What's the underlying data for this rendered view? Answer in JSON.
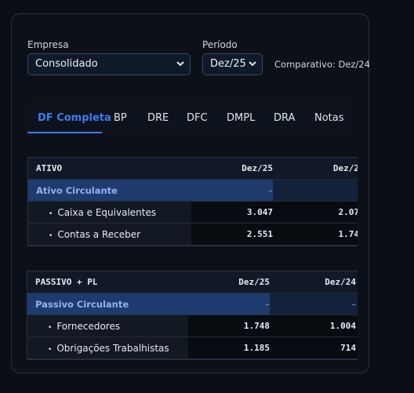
{
  "filters": {
    "empresa": {
      "label": "Empresa",
      "value": "Consolidado"
    },
    "periodo": {
      "label": "Período",
      "value": "Dez/25"
    },
    "comparativo": "Comparativo: Dez/24"
  },
  "tabs": [
    "DF Completa",
    "BP",
    "DRE",
    "DFC",
    "DMPL",
    "DRA",
    "Notas"
  ],
  "tables": [
    {
      "header": [
        "ATIVO",
        "Dez/25",
        "Dez/2"
      ],
      "group": [
        "Ativo Circulante",
        "–"
      ],
      "rows": [
        [
          "Caixa e Equivalentes",
          "3.047",
          "2.07"
        ],
        [
          "Contas a Receber",
          "2.551",
          "1.74"
        ]
      ]
    },
    {
      "header": [
        "PASSIVO + PL",
        "Dez/25",
        "Dez/24"
      ],
      "group": [
        "Passivo Circulante",
        "–",
        "–"
      ],
      "rows": [
        [
          "Fornecedores",
          "1.748",
          "1.004"
        ],
        [
          "Obrigações Trabalhistas",
          "1.185",
          "714"
        ]
      ]
    }
  ]
}
